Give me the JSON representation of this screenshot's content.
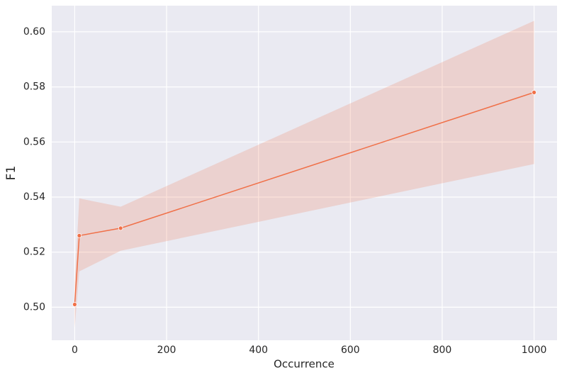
{
  "chart_data": {
    "type": "line",
    "x_label": "Occurrence",
    "y_label": "F1",
    "x": [
      0,
      10,
      100,
      1000
    ],
    "series": [
      {
        "color": "#f07048",
        "values": [
          0.501,
          0.526,
          0.5287,
          0.578
        ],
        "lower": [
          0.4925,
          0.513,
          0.5205,
          0.552
        ],
        "upper": [
          0.509,
          0.5395,
          0.5365,
          0.604
        ]
      }
    ],
    "xlim": [
      -50,
      1050
    ],
    "ylim": [
      0.488,
      0.6095
    ],
    "xticks": [
      0,
      200,
      400,
      600,
      800,
      1000
    ],
    "yticks": [
      {
        "value": 0.5,
        "label": "0.50"
      },
      {
        "value": 0.52,
        "label": "0.52"
      },
      {
        "value": 0.54,
        "label": "0.54"
      },
      {
        "value": 0.56,
        "label": "0.56"
      },
      {
        "value": 0.58,
        "label": "0.58"
      },
      {
        "value": 0.6,
        "label": "0.60"
      }
    ],
    "grid": true
  }
}
